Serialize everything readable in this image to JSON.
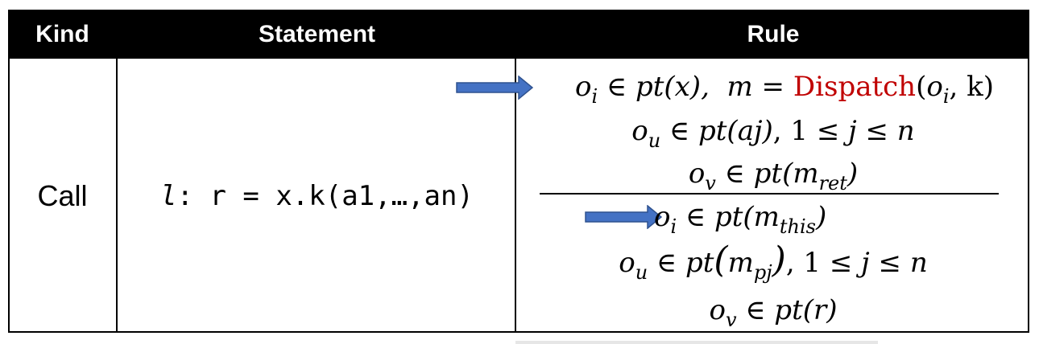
{
  "table": {
    "headers": {
      "kind": "Kind",
      "statement": "Statement",
      "rule": "Rule"
    },
    "row": {
      "kind": "Call",
      "statement_label": "l",
      "statement_code": ": r = x.k(a1,…,an)"
    }
  },
  "rule": {
    "premises": [
      "oi ∈ pt(x), m = Dispatch(oi, k)",
      "ou ∈ pt(aj), 1 ≤ j ≤ n",
      "ov ∈ pt(mret)"
    ],
    "conclusions": [
      "oi ∈ pt(mthis)",
      "ou ∈ pt(mpj), 1 ≤ j ≤ n",
      "ov ∈ pt(r)"
    ]
  },
  "colors": {
    "header_bg": "#000000",
    "header_text": "#ffffff",
    "dispatch": "#c00000",
    "arrow_fill": "#4472c4",
    "arrow_stroke": "#2f528f"
  },
  "icons": {
    "premise_arrow": "right-arrow-icon",
    "conclusion_arrow": "right-arrow-icon"
  }
}
